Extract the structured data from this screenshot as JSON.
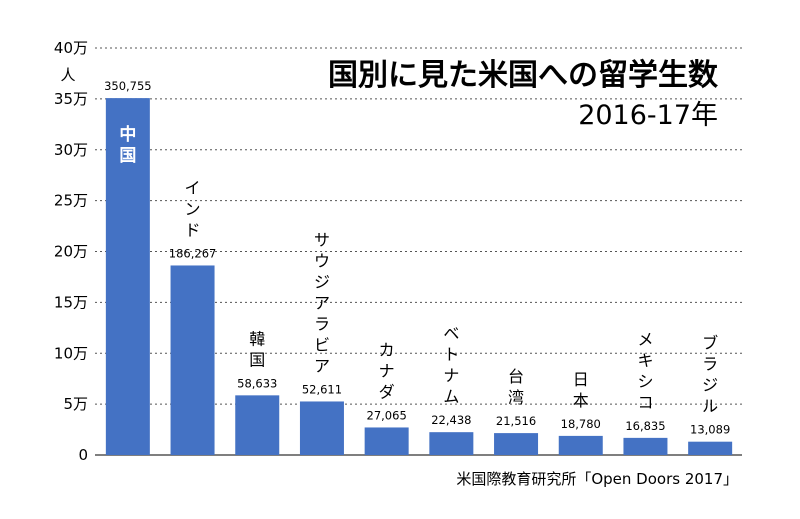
{
  "chart_data": {
    "type": "bar",
    "title": "国別に見た米国への留学生数",
    "subtitle": "2016-17年",
    "y_unit_label": "人",
    "source": "米国際教育研究所「Open Doors 2017」",
    "categories": [
      "中国",
      "インド",
      "韓国",
      "サウジアラビア",
      "カナダ",
      "ベトナム",
      "台湾",
      "日本",
      "メキシコ",
      "ブラジル"
    ],
    "values": [
      350755,
      186267,
      58633,
      52611,
      27065,
      22438,
      21516,
      18780,
      16835,
      13089
    ],
    "value_labels": [
      "350,755",
      "186,267",
      "58,633",
      "52,611",
      "27,065",
      "22,438",
      "21,516",
      "18,780",
      "16,835",
      "13,089"
    ],
    "ylim": [
      0,
      400000
    ],
    "yticks": [
      0,
      50000,
      100000,
      150000,
      200000,
      250000,
      300000,
      350000,
      400000
    ],
    "ytick_labels": [
      "0",
      "5万",
      "10万",
      "15万",
      "20万",
      "25万",
      "30万",
      "35万",
      "40万"
    ],
    "grid": true,
    "legend": false,
    "bar_color": "#4472C4",
    "grid_color": "#555555"
  }
}
